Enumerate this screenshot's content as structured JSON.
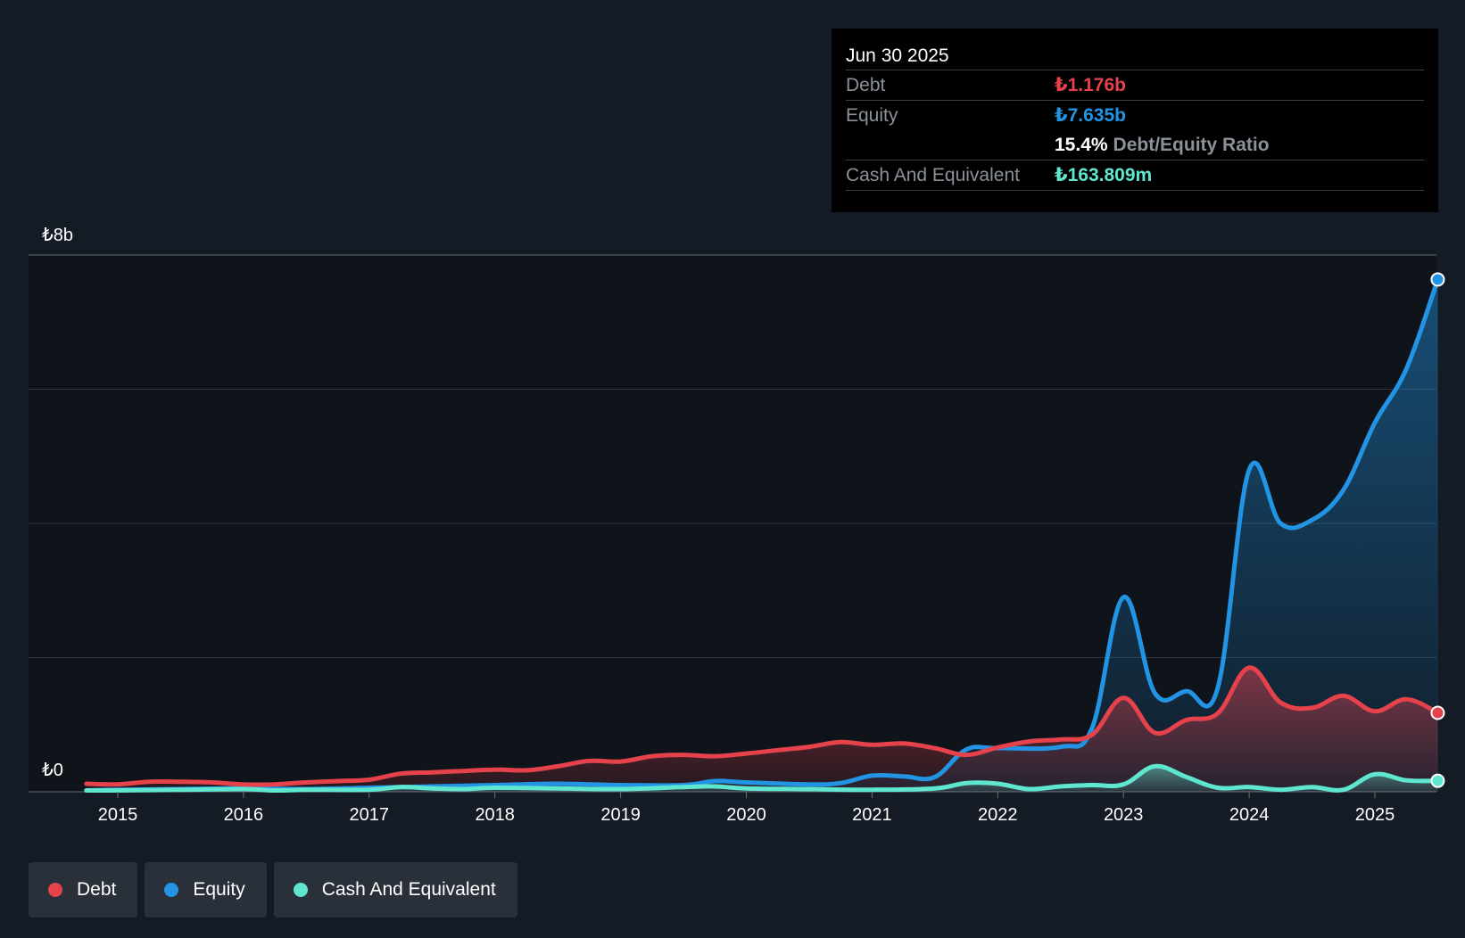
{
  "tooltip": {
    "date": "Jun 30 2025",
    "debt_label": "Debt",
    "debt_value": "₺1.176b",
    "equity_label": "Equity",
    "equity_value": "₺7.635b",
    "ratio_value": "15.4%",
    "ratio_label": "Debt/Equity Ratio",
    "cash_label": "Cash And Equivalent",
    "cash_value": "₺163.809m"
  },
  "legend": {
    "debt": "Debt",
    "equity": "Equity",
    "cash": "Cash And Equivalent"
  },
  "colors": {
    "debt": "#e5424c",
    "equity": "#2294e3",
    "cash": "#5ee6cf",
    "background": "#151b24",
    "grid": "#2f3540"
  },
  "chart_data": {
    "type": "area",
    "y_top_label": "₺8b",
    "y_bottom_label": "₺0",
    "ylim": [
      0,
      8
    ],
    "xlim": [
      2014.75,
      2025.5
    ],
    "x_ticks": [
      2015,
      2016,
      2017,
      2018,
      2019,
      2020,
      2021,
      2022,
      2023,
      2024,
      2025
    ],
    "gridlines": [
      0,
      2,
      4,
      6,
      8
    ],
    "series": [
      {
        "name": "Debt",
        "key": "debt",
        "points": [
          [
            2014.75,
            0.12
          ],
          [
            2015.0,
            0.11
          ],
          [
            2015.25,
            0.15
          ],
          [
            2015.5,
            0.15
          ],
          [
            2015.75,
            0.14
          ],
          [
            2016.0,
            0.11
          ],
          [
            2016.25,
            0.11
          ],
          [
            2016.5,
            0.14
          ],
          [
            2016.75,
            0.16
          ],
          [
            2017.0,
            0.18
          ],
          [
            2017.25,
            0.27
          ],
          [
            2017.5,
            0.29
          ],
          [
            2017.75,
            0.31
          ],
          [
            2018.0,
            0.33
          ],
          [
            2018.25,
            0.32
          ],
          [
            2018.5,
            0.38
          ],
          [
            2018.75,
            0.46
          ],
          [
            2019.0,
            0.45
          ],
          [
            2019.25,
            0.53
          ],
          [
            2019.5,
            0.55
          ],
          [
            2019.75,
            0.53
          ],
          [
            2020.0,
            0.57
          ],
          [
            2020.25,
            0.62
          ],
          [
            2020.5,
            0.67
          ],
          [
            2020.75,
            0.74
          ],
          [
            2021.0,
            0.7
          ],
          [
            2021.25,
            0.72
          ],
          [
            2021.5,
            0.65
          ],
          [
            2021.75,
            0.55
          ],
          [
            2022.0,
            0.66
          ],
          [
            2022.25,
            0.75
          ],
          [
            2022.5,
            0.78
          ],
          [
            2022.75,
            0.85
          ],
          [
            2023.0,
            1.4
          ],
          [
            2023.25,
            0.88
          ],
          [
            2023.5,
            1.07
          ],
          [
            2023.75,
            1.17
          ],
          [
            2024.0,
            1.85
          ],
          [
            2024.25,
            1.33
          ],
          [
            2024.5,
            1.25
          ],
          [
            2024.75,
            1.43
          ],
          [
            2025.0,
            1.2
          ],
          [
            2025.25,
            1.38
          ],
          [
            2025.5,
            1.176
          ]
        ]
      },
      {
        "name": "Equity",
        "key": "equity",
        "points": [
          [
            2014.75,
            0.02
          ],
          [
            2015.0,
            0.03
          ],
          [
            2015.5,
            0.04
          ],
          [
            2016.0,
            0.05
          ],
          [
            2016.5,
            0.04
          ],
          [
            2017.0,
            0.06
          ],
          [
            2017.5,
            0.08
          ],
          [
            2018.0,
            0.1
          ],
          [
            2018.5,
            0.12
          ],
          [
            2019.0,
            0.1
          ],
          [
            2019.5,
            0.1
          ],
          [
            2019.75,
            0.16
          ],
          [
            2020.0,
            0.14
          ],
          [
            2020.5,
            0.11
          ],
          [
            2020.75,
            0.13
          ],
          [
            2021.0,
            0.24
          ],
          [
            2021.25,
            0.23
          ],
          [
            2021.5,
            0.22
          ],
          [
            2021.75,
            0.63
          ],
          [
            2022.0,
            0.65
          ],
          [
            2022.5,
            0.67
          ],
          [
            2022.75,
            0.95
          ],
          [
            2023.0,
            2.9
          ],
          [
            2023.25,
            1.47
          ],
          [
            2023.5,
            1.5
          ],
          [
            2023.75,
            1.55
          ],
          [
            2024.0,
            4.8
          ],
          [
            2024.25,
            4.0
          ],
          [
            2024.5,
            4.05
          ],
          [
            2024.75,
            4.5
          ],
          [
            2025.0,
            5.5
          ],
          [
            2025.25,
            6.3
          ],
          [
            2025.5,
            7.635
          ]
        ]
      },
      {
        "name": "Cash And Equivalent",
        "key": "cash",
        "points": [
          [
            2014.75,
            0.02
          ],
          [
            2015.0,
            0.02
          ],
          [
            2015.5,
            0.03
          ],
          [
            2016.0,
            0.04
          ],
          [
            2016.25,
            0.02
          ],
          [
            2016.5,
            0.03
          ],
          [
            2017.0,
            0.03
          ],
          [
            2017.25,
            0.07
          ],
          [
            2017.5,
            0.05
          ],
          [
            2017.75,
            0.04
          ],
          [
            2018.0,
            0.06
          ],
          [
            2018.5,
            0.05
          ],
          [
            2019.0,
            0.04
          ],
          [
            2019.5,
            0.07
          ],
          [
            2019.75,
            0.08
          ],
          [
            2020.0,
            0.05
          ],
          [
            2020.5,
            0.04
          ],
          [
            2021.0,
            0.03
          ],
          [
            2021.5,
            0.05
          ],
          [
            2021.75,
            0.13
          ],
          [
            2022.0,
            0.12
          ],
          [
            2022.25,
            0.04
          ],
          [
            2022.5,
            0.08
          ],
          [
            2022.75,
            0.1
          ],
          [
            2023.0,
            0.11
          ],
          [
            2023.25,
            0.38
          ],
          [
            2023.5,
            0.22
          ],
          [
            2023.75,
            0.06
          ],
          [
            2024.0,
            0.07
          ],
          [
            2024.25,
            0.03
          ],
          [
            2024.5,
            0.07
          ],
          [
            2024.75,
            0.03
          ],
          [
            2025.0,
            0.26
          ],
          [
            2025.25,
            0.17
          ],
          [
            2025.5,
            0.164
          ]
        ]
      }
    ]
  }
}
